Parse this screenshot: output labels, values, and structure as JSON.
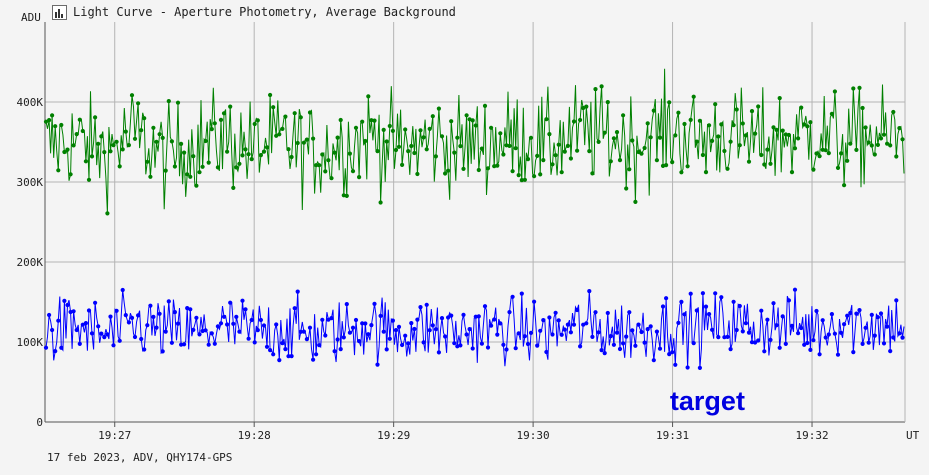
{
  "window": {
    "title": "Light Curve - Aperture Photometry, Average Background",
    "title_icon": "light-curve-app-icon"
  },
  "footer_text": "17 feb 2023, ADV, QHY174-GPS",
  "chart_data": {
    "type": "line",
    "title": "Light Curve - Aperture Photometry, Average Background",
    "ylabel": "ADU",
    "xlabel": "UT",
    "ylim": [
      0,
      500000
    ],
    "y_ticks": [
      {
        "value": 0,
        "label": "0"
      },
      {
        "value": 100000,
        "label": "100K"
      },
      {
        "value": 200000,
        "label": "200K"
      },
      {
        "value": 300000,
        "label": "300K"
      },
      {
        "value": 400000,
        "label": "400K"
      }
    ],
    "x_range": [
      "19:26:30",
      "19:32:40"
    ],
    "x_ticks": [
      "19:27",
      "19:28",
      "19:29",
      "19:30",
      "19:31",
      "19:32"
    ],
    "grid": true,
    "markers": true,
    "series": [
      {
        "color": "#008000",
        "typical_range": [
          260000,
          470000
        ],
        "values_sampled": [
          345000,
          352000,
          338000,
          361000,
          330000,
          348000,
          355000,
          342000,
          350000,
          336000,
          346000,
          358000,
          340000,
          352000,
          344000,
          349000,
          357000,
          345000,
          362000,
          355000,
          350000,
          366000,
          352000,
          360000,
          348000,
          356000,
          362000,
          350000,
          358000,
          354000
        ]
      },
      {
        "color": "#0000ff",
        "typical_range": [
          60000,
          190000
        ],
        "values_sampled": [
          112000,
          118000,
          108000,
          121000,
          115000,
          110000,
          119000,
          113000,
          117000,
          109000,
          114000,
          120000,
          111000,
          116000,
          112000,
          118000,
          115000,
          110000,
          121000,
          116000,
          113000,
          120000,
          117000,
          124000,
          119000,
          122000,
          118000,
          126000,
          121000,
          124000
        ]
      }
    ],
    "annotations": [
      {
        "text": "target",
        "color": "#0000e0",
        "x": "19:31:15",
        "y": 15000
      }
    ]
  }
}
